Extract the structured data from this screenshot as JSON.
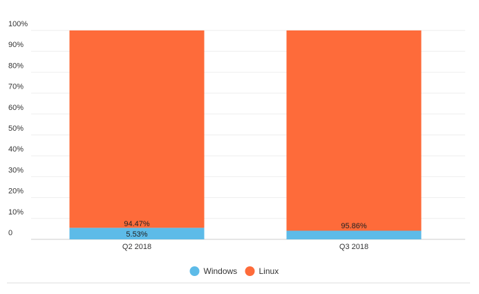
{
  "chart_data": {
    "type": "bar",
    "stacked": true,
    "categories": [
      "Q2 2018",
      "Q3 2018"
    ],
    "series": [
      {
        "name": "Windows",
        "values": [
          5.53,
          4.14
        ],
        "labels": [
          "5.53%",
          ""
        ],
        "color": "#5dbbe8"
      },
      {
        "name": "Linux",
        "values": [
          94.47,
          95.86
        ],
        "labels": [
          "94.47%",
          "95.86%"
        ],
        "color": "#fe6b3a"
      }
    ],
    "yticks": [
      "0",
      "10%",
      "20%",
      "30%",
      "40%",
      "50%",
      "60%",
      "70%",
      "80%",
      "90%",
      "100%"
    ],
    "ylim": [
      0,
      100
    ],
    "grid": true,
    "legend_position": "bottom-center"
  }
}
